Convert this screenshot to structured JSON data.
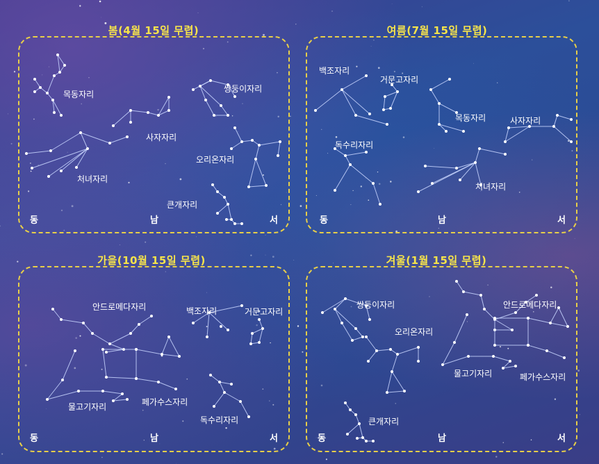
{
  "seasons": {
    "spring": {
      "title": "봄(4월 15일 무렵)",
      "constellations": [
        "목동자리",
        "쌍둥이자리",
        "사자자리",
        "오리온자리",
        "처녀자리",
        "큰개자리"
      ],
      "directions": [
        "동",
        "남",
        "서"
      ]
    },
    "summer": {
      "title": "여름(7월 15일 무렵)",
      "constellations": [
        "백조자리",
        "거문고자리",
        "목동자리",
        "사자자리",
        "독수리자리",
        "처녀자리"
      ],
      "directions": [
        "동",
        "남",
        "서"
      ]
    },
    "autumn": {
      "title": "가을(10월 15일 무렵)",
      "constellations": [
        "안드로메다자리",
        "백조자리",
        "거문고자리",
        "물고기자리",
        "페가수스자리",
        "독수리자리"
      ],
      "directions": [
        "동",
        "남",
        "서"
      ]
    },
    "winter": {
      "title": "겨울(1월 15일 무렵)",
      "constellations": [
        "쌍둥이자리",
        "안드로메다자리",
        "오리온자리",
        "물고기자리",
        "페가수스자리",
        "큰개자리"
      ],
      "directions": [
        "동",
        "남",
        "서"
      ]
    }
  },
  "colors": {
    "title": "#f7e44a",
    "border": "#e8cf48",
    "star": "#ffffff",
    "line": "#c9d6ff"
  }
}
